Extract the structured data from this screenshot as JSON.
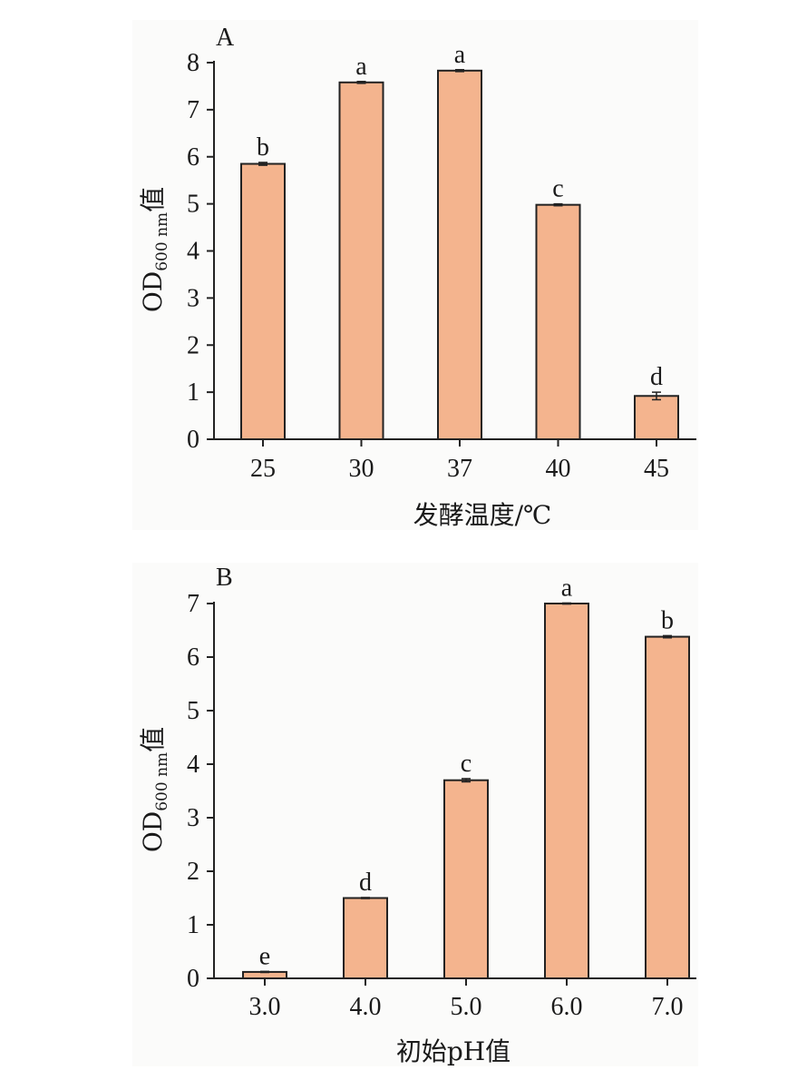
{
  "chart_data": [
    {
      "type": "bar",
      "panel_label": "A",
      "categories": [
        "25",
        "30",
        "37",
        "40",
        "45"
      ],
      "values": [
        5.85,
        7.58,
        7.83,
        4.98,
        0.92
      ],
      "errors": [
        0.03,
        0.02,
        0.02,
        0.02,
        0.08
      ],
      "significance": [
        "b",
        "a",
        "a",
        "c",
        "d"
      ],
      "xlabel": "发酵温度/℃",
      "ylabel": {
        "main": "OD",
        "sub": "600 nm",
        "suffix": "值"
      },
      "ylim": [
        0,
        8
      ],
      "yticks": [
        0,
        1,
        2,
        3,
        4,
        5,
        6,
        7,
        8
      ],
      "bar_color": "#f4b48e",
      "grid": false
    },
    {
      "type": "bar",
      "panel_label": "B",
      "categories": [
        "3.0",
        "4.0",
        "5.0",
        "6.0",
        "7.0"
      ],
      "values": [
        0.12,
        1.5,
        3.7,
        7.0,
        6.38
      ],
      "errors": [
        0.01,
        0.01,
        0.03,
        0.01,
        0.02
      ],
      "significance": [
        "e",
        "d",
        "c",
        "a",
        "b"
      ],
      "xlabel": "初始pH值",
      "ylabel": {
        "main": "OD",
        "sub": "600 nm",
        "suffix": "值"
      },
      "ylim": [
        0,
        7
      ],
      "yticks": [
        0,
        1,
        2,
        3,
        4,
        5,
        6,
        7
      ],
      "bar_color": "#f4b48e",
      "grid": false
    }
  ]
}
